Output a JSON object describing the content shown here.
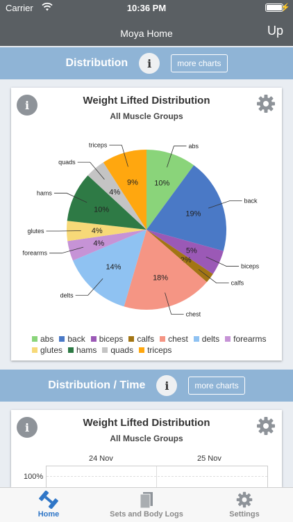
{
  "status": {
    "carrier": "Carrier",
    "time": "10:36 PM"
  },
  "nav": {
    "title": "Moya Home",
    "up_label": "Up"
  },
  "section1": {
    "title": "Distribution",
    "info": "i",
    "more_label": "more charts"
  },
  "card1": {
    "title": "Weight Lifted Distribution",
    "subtitle": "All Muscle Groups",
    "info": "i",
    "chart_data": {
      "type": "pie",
      "title": "Weight Lifted Distribution",
      "subtitle": "All Muscle Groups",
      "legend_position": "bottom",
      "slices": [
        {
          "name": "abs",
          "value": 10,
          "label": "10%",
          "color": "#8ad47a"
        },
        {
          "name": "back",
          "value": 19,
          "label": "19%",
          "color": "#4a79c6"
        },
        {
          "name": "biceps",
          "value": 5,
          "label": "5%",
          "color": "#9b59b6"
        },
        {
          "name": "calfs",
          "value": 2,
          "label": "2%",
          "color": "#a27514"
        },
        {
          "name": "chest",
          "value": 18,
          "label": "18%",
          "color": "#f59584"
        },
        {
          "name": "delts",
          "value": 14,
          "label": "14%",
          "color": "#8fc2f2"
        },
        {
          "name": "forearms",
          "value": 4,
          "label": "4%",
          "color": "#c693d6"
        },
        {
          "name": "glutes",
          "value": 4,
          "label": "4%",
          "color": "#f7d978"
        },
        {
          "name": "hams",
          "value": 10,
          "label": "10%",
          "color": "#2e7a45"
        },
        {
          "name": "quads",
          "value": 4,
          "label": "4%",
          "color": "#c4c4c4"
        },
        {
          "name": "triceps",
          "value": 9,
          "label": "9%",
          "color": "#ffa70f"
        }
      ]
    }
  },
  "section2": {
    "title": "Distribution / Time",
    "info": "i",
    "more_label": "more charts"
  },
  "card2": {
    "title": "Weight Lifted Distribution",
    "subtitle": "All Muscle Groups",
    "info": "i",
    "chart_data": {
      "type": "area",
      "x": [
        "24 Nov",
        "25 Nov"
      ],
      "y_ticks": [
        "100%"
      ]
    }
  },
  "tabs": [
    {
      "label": "Home",
      "icon": "dumbbell-icon",
      "active": true
    },
    {
      "label": "Sets and Body Logs",
      "icon": "logs-icon",
      "active": false
    },
    {
      "label": "Settings",
      "icon": "gear-icon",
      "active": false
    }
  ]
}
